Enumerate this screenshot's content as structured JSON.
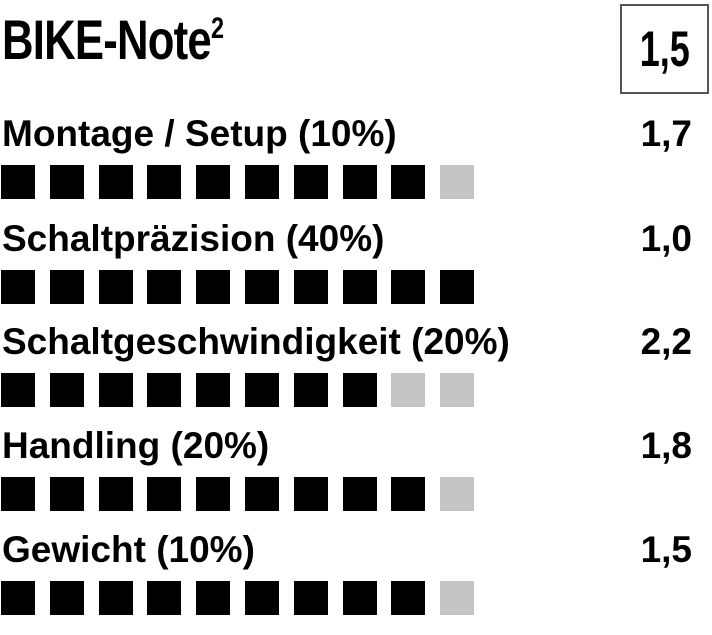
{
  "header": {
    "title": "BIKE-Note",
    "title_sup": "2",
    "overall_score": "1,5"
  },
  "colors": {
    "filled": "#000000",
    "empty": "#c4c4c4"
  },
  "max_squares": 10,
  "rows": [
    {
      "label": "Montage / Setup (10%)",
      "score": "1,7",
      "filled": 9
    },
    {
      "label": "Schaltpräzision (40%)",
      "score": "1,0",
      "filled": 10
    },
    {
      "label": "Schaltgeschwindigkeit (20%)",
      "score": "2,2",
      "filled": 8
    },
    {
      "label": "Handling (20%)",
      "score": "1,8",
      "filled": 9
    },
    {
      "label": "Gewicht (10%)",
      "score": "1,5",
      "filled": 9
    }
  ]
}
